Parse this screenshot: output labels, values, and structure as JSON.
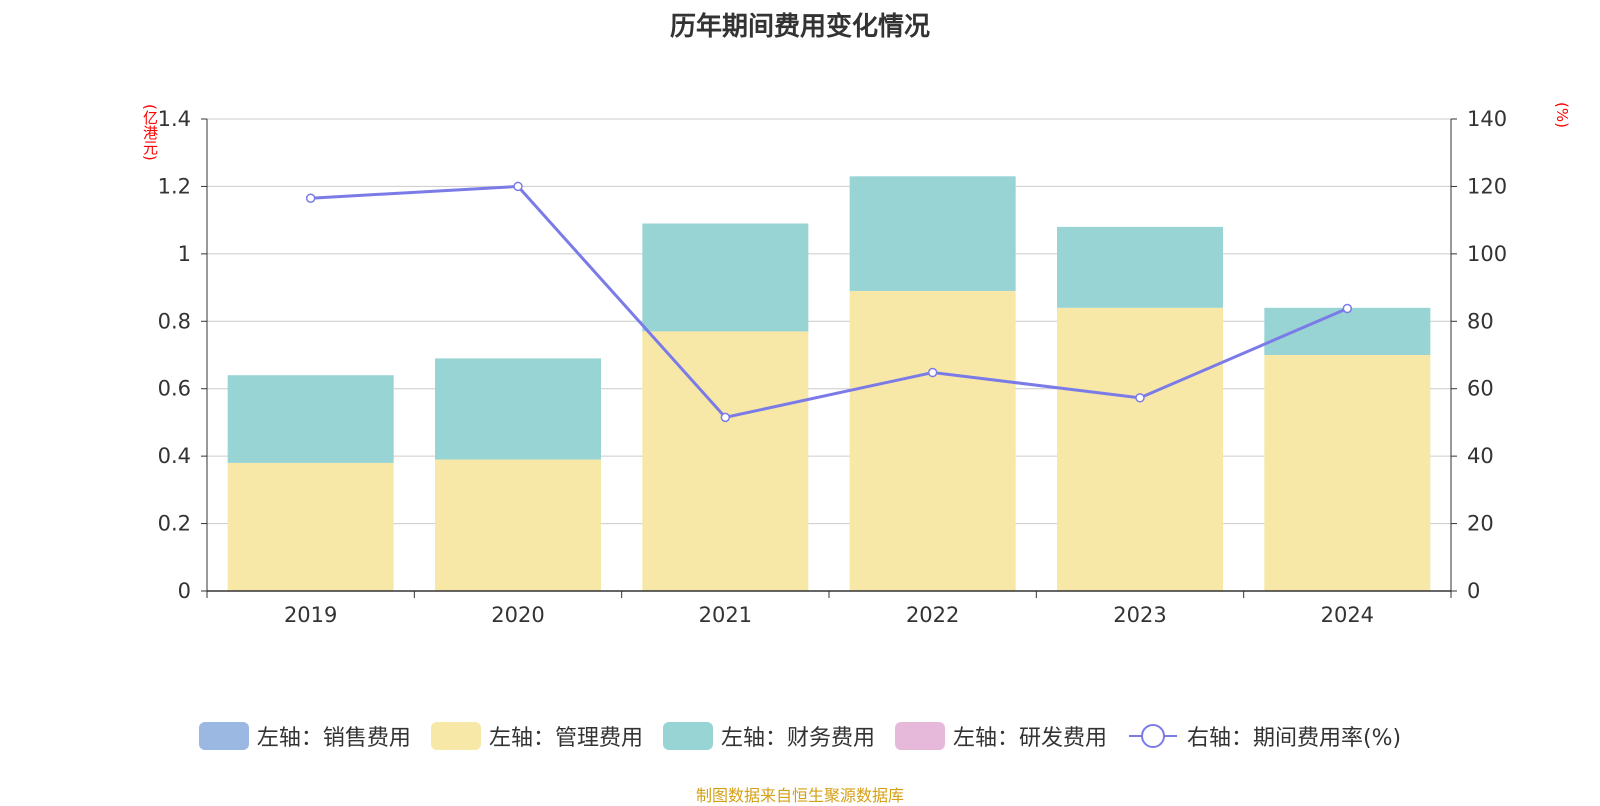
{
  "chart_data": {
    "type": "bar",
    "title": "历年期间费用变化情况",
    "categories": [
      "2019",
      "2020",
      "2021",
      "2022",
      "2023",
      "2024"
    ],
    "stacked": true,
    "left_axis": {
      "unit_label": "(亿港元)",
      "ylim": [
        0,
        1.4
      ],
      "ticks": [
        "0",
        "0.2",
        "0.4",
        "0.6",
        "0.8",
        "1",
        "1.2",
        "1.4"
      ]
    },
    "right_axis": {
      "unit_label": "(%)",
      "ylim": [
        0,
        140
      ],
      "ticks": [
        "0",
        "20",
        "40",
        "60",
        "80",
        "100",
        "120",
        "140"
      ]
    },
    "series": [
      {
        "name": "左轴：销售费用",
        "type": "bar",
        "axis": "left",
        "color": "#9bb8e3",
        "values": [
          0,
          0,
          0,
          0,
          0,
          0
        ]
      },
      {
        "name": "左轴：管理费用",
        "type": "bar",
        "axis": "left",
        "color": "#f7e8a8",
        "values": [
          0.38,
          0.39,
          0.77,
          0.89,
          0.84,
          0.7
        ]
      },
      {
        "name": "左轴：财务费用",
        "type": "bar",
        "axis": "left",
        "color": "#98d4d4",
        "values": [
          0.26,
          0.3,
          0.32,
          0.34,
          0.24,
          0.14
        ]
      },
      {
        "name": "左轴：研发费用",
        "type": "bar",
        "axis": "left",
        "color": "#e6b8da",
        "values": [
          0,
          0,
          0,
          0,
          0,
          0
        ]
      },
      {
        "name": "右轴：期间费用率(%)",
        "type": "line",
        "axis": "right",
        "color": "#7b7be8",
        "values": [
          116.5,
          120.0,
          51.5,
          64.8,
          57.3,
          83.8
        ]
      }
    ],
    "grid": true,
    "legend_position": "bottom"
  },
  "footer": {
    "source": "制图数据来自恒生聚源数据库"
  }
}
